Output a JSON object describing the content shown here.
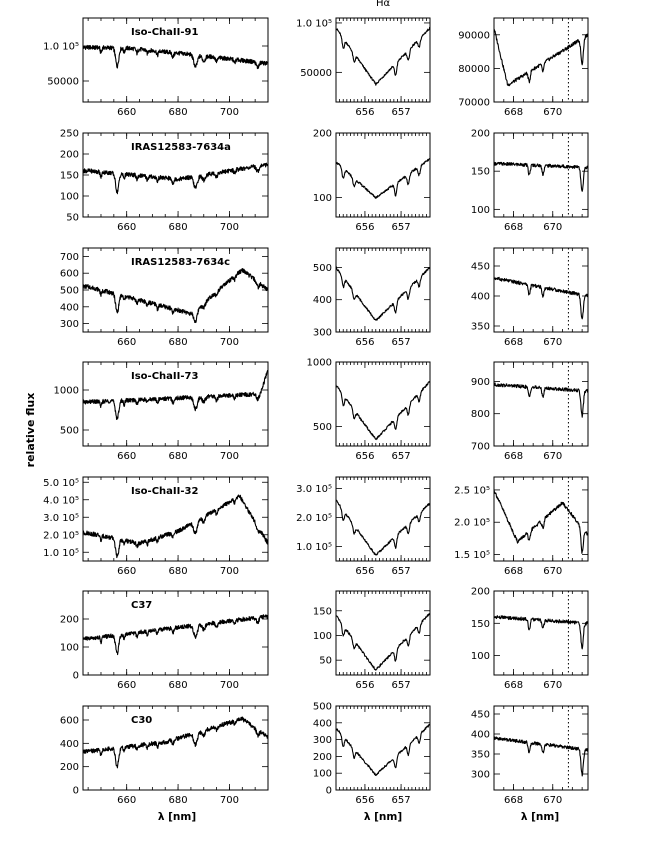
{
  "figure": {
    "top_title": "Hα",
    "ylabel": "relative flux",
    "xlabel_left": "λ [nm]",
    "xlabel_mid": "λ [nm]",
    "xlabel_right": "λ [nm]"
  },
  "chart_data": [
    {
      "type": "line",
      "star": "Iso-ChaII-91",
      "column": "full",
      "xlim": [
        643,
        715
      ],
      "xticks": [
        660,
        680,
        700
      ],
      "ylim": [
        20000,
        140000
      ],
      "yticks": [
        {
          "v": 50000,
          "t": "50000"
        },
        {
          "v": 100000,
          "t": "1.0  10⁵"
        }
      ],
      "series": [
        {
          "x": [
            645,
            660,
            685,
            715
          ],
          "y": [
            98000,
            97000,
            88000,
            75000
          ]
        }
      ]
    },
    {
      "type": "line",
      "star": "Iso-ChaII-91",
      "column": "Hα",
      "xlim": [
        655.2,
        657.8
      ],
      "xticks": [
        656,
        657
      ],
      "ylim": [
        20000,
        105000
      ],
      "yticks": [
        {
          "v": 50000,
          "t": "50000"
        },
        {
          "v": 100000,
          "t": "1.0  10⁵"
        }
      ],
      "series": [
        {
          "x": [
            655.2,
            656.3,
            657.8
          ],
          "y": [
            95000,
            38000,
            95000
          ]
        }
      ]
    },
    {
      "type": "line",
      "star": "Iso-ChaII-91",
      "column": "Li",
      "xlim": [
        667,
        671.8
      ],
      "xticks": [
        668,
        670
      ],
      "ylim": [
        70000,
        95000
      ],
      "yticks": [
        {
          "v": 70000,
          "t": "70000"
        },
        {
          "v": 80000,
          "t": "80000"
        },
        {
          "v": 90000,
          "t": "90000"
        }
      ],
      "series": [
        {
          "x": [
            667,
            667.7,
            671.8
          ],
          "y": [
            92000,
            75000,
            90000
          ]
        }
      ],
      "marker_x": 670.8
    },
    {
      "type": "line",
      "star": "IRAS12583-7634a",
      "column": "full",
      "xlim": [
        643,
        715
      ],
      "xticks": [
        660,
        680,
        700
      ],
      "ylim": [
        50,
        250
      ],
      "yticks": [
        {
          "v": 50,
          "t": "50"
        },
        {
          "v": 100,
          "t": "100"
        },
        {
          "v": 150,
          "t": "150"
        },
        {
          "v": 200,
          "t": "200"
        },
        {
          "v": 250,
          "t": "250"
        }
      ],
      "series": [
        {
          "x": [
            645,
            680,
            715
          ],
          "y": [
            160,
            140,
            175
          ]
        }
      ]
    },
    {
      "type": "line",
      "star": "IRAS12583-7634a",
      "column": "Hα",
      "xlim": [
        655.2,
        657.8
      ],
      "xticks": [
        656,
        657
      ],
      "ylim": [
        70,
        200
      ],
      "yticks": [
        {
          "v": 100,
          "t": "100"
        },
        {
          "v": 200,
          "t": "200"
        }
      ],
      "series": [
        {
          "x": [
            655.2,
            656.3,
            657.8
          ],
          "y": [
            155,
            100,
            160
          ]
        }
      ]
    },
    {
      "type": "line",
      "star": "IRAS12583-7634a",
      "column": "Li",
      "xlim": [
        667,
        671.8
      ],
      "xticks": [
        668,
        670
      ],
      "ylim": [
        90,
        200
      ],
      "yticks": [
        {
          "v": 100,
          "t": "100"
        },
        {
          "v": 150,
          "t": "150"
        },
        {
          "v": 200,
          "t": "200"
        }
      ],
      "series": [
        {
          "x": [
            667,
            671.8
          ],
          "y": [
            160,
            155
          ]
        }
      ],
      "marker_x": 670.8
    },
    {
      "type": "line",
      "star": "IRAS12583-7634c",
      "column": "full",
      "xlim": [
        643,
        715
      ],
      "xticks": [
        660,
        680,
        700
      ],
      "ylim": [
        250,
        750
      ],
      "yticks": [
        {
          "v": 300,
          "t": "300"
        },
        {
          "v": 400,
          "t": "400"
        },
        {
          "v": 500,
          "t": "500"
        },
        {
          "v": 600,
          "t": "600"
        },
        {
          "v": 700,
          "t": "700"
        }
      ],
      "series": [
        {
          "x": [
            645,
            670,
            685,
            705,
            715
          ],
          "y": [
            520,
            420,
            360,
            620,
            500
          ]
        }
      ]
    },
    {
      "type": "line",
      "star": "IRAS12583-7634c",
      "column": "Hα",
      "xlim": [
        655.2,
        657.8
      ],
      "xticks": [
        656,
        657
      ],
      "ylim": [
        300,
        560
      ],
      "yticks": [
        {
          "v": 300,
          "t": "300"
        },
        {
          "v": 400,
          "t": "400"
        },
        {
          "v": 500,
          "t": "500"
        }
      ],
      "series": [
        {
          "x": [
            655.2,
            656.3,
            657.8
          ],
          "y": [
            500,
            335,
            500
          ]
        }
      ]
    },
    {
      "type": "line",
      "star": "IRAS12583-7634c",
      "column": "Li",
      "xlim": [
        667,
        671.8
      ],
      "xticks": [
        668,
        670
      ],
      "ylim": [
        340,
        480
      ],
      "yticks": [
        {
          "v": 350,
          "t": "350"
        },
        {
          "v": 400,
          "t": "400"
        },
        {
          "v": 450,
          "t": "450"
        }
      ],
      "series": [
        {
          "x": [
            667,
            671.8
          ],
          "y": [
            430,
            400
          ]
        }
      ],
      "marker_x": 670.8
    },
    {
      "type": "line",
      "star": "Iso-ChaII-73",
      "column": "full",
      "xlim": [
        643,
        715
      ],
      "xticks": [
        660,
        680,
        700
      ],
      "ylim": [
        300,
        1350
      ],
      "yticks": [
        {
          "v": 500,
          "t": "500"
        },
        {
          "v": 1000,
          "t": "1000"
        }
      ],
      "series": [
        {
          "x": [
            645,
            680,
            712,
            715
          ],
          "y": [
            850,
            900,
            950,
            1250
          ]
        }
      ]
    },
    {
      "type": "line",
      "star": "Iso-ChaII-73",
      "column": "Hα",
      "xlim": [
        655.2,
        657.8
      ],
      "xticks": [
        656,
        657
      ],
      "ylim": [
        350,
        1000
      ],
      "yticks": [
        {
          "v": 500,
          "t": "500"
        },
        {
          "v": 1000,
          "t": "1000"
        }
      ],
      "series": [
        {
          "x": [
            655.2,
            656.3,
            657.8
          ],
          "y": [
            820,
            400,
            850
          ]
        }
      ]
    },
    {
      "type": "line",
      "star": "Iso-ChaII-73",
      "column": "Li",
      "xlim": [
        667,
        671.8
      ],
      "xticks": [
        668,
        670
      ],
      "ylim": [
        700,
        960
      ],
      "yticks": [
        {
          "v": 700,
          "t": "700"
        },
        {
          "v": 800,
          "t": "800"
        },
        {
          "v": 900,
          "t": "900"
        }
      ],
      "series": [
        {
          "x": [
            667,
            671.8
          ],
          "y": [
            890,
            870
          ]
        }
      ],
      "marker_x": 670.8
    },
    {
      "type": "line",
      "star": "Iso-ChaII-32",
      "column": "full",
      "xlim": [
        643,
        715
      ],
      "xticks": [
        660,
        680,
        700
      ],
      "ylim": [
        50000,
        530000
      ],
      "yticks": [
        {
          "v": 100000,
          "t": "1.0  10⁵"
        },
        {
          "v": 200000,
          "t": "2.0  10⁵"
        },
        {
          "v": 300000,
          "t": "3.0  10⁵"
        },
        {
          "v": 400000,
          "t": "4.0  10⁵"
        },
        {
          "v": 500000,
          "t": "5.0  10⁵"
        }
      ],
      "series": [
        {
          "x": [
            645,
            665,
            680,
            704,
            715
          ],
          "y": [
            210000,
            150000,
            220000,
            420000,
            150000
          ]
        }
      ]
    },
    {
      "type": "line",
      "star": "Iso-ChaII-32",
      "column": "Hα",
      "xlim": [
        655.2,
        657.8
      ],
      "xticks": [
        656,
        657
      ],
      "ylim": [
        50000,
        340000
      ],
      "yticks": [
        {
          "v": 100000,
          "t": "1.0  10⁵"
        },
        {
          "v": 200000,
          "t": "2.0  10⁵"
        },
        {
          "v": 300000,
          "t": "3.0  10⁵"
        }
      ],
      "series": [
        {
          "x": [
            655.2,
            656.3,
            657.8
          ],
          "y": [
            260000,
            70000,
            250000
          ]
        }
      ]
    },
    {
      "type": "line",
      "star": "Iso-ChaII-32",
      "column": "Li",
      "xlim": [
        667,
        671.8
      ],
      "xticks": [
        668,
        670
      ],
      "ylim": [
        140000,
        270000
      ],
      "yticks": [
        {
          "v": 150000,
          "t": "1.5  10⁵"
        },
        {
          "v": 200000,
          "t": "2.0  10⁵"
        },
        {
          "v": 250000,
          "t": "2.5  10⁵"
        }
      ],
      "series": [
        {
          "x": [
            667,
            668.2,
            670.5,
            671.8
          ],
          "y": [
            250000,
            170000,
            230000,
            180000
          ]
        }
      ],
      "marker_x": 670.8
    },
    {
      "type": "line",
      "star": "C37",
      "column": "full",
      "xlim": [
        643,
        715
      ],
      "xticks": [
        660,
        680,
        700
      ],
      "ylim": [
        0,
        300
      ],
      "yticks": [
        {
          "v": 0,
          "t": "0"
        },
        {
          "v": 100,
          "t": "100"
        },
        {
          "v": 200,
          "t": "200"
        }
      ],
      "series": [
        {
          "x": [
            645,
            680,
            715
          ],
          "y": [
            130,
            170,
            210
          ]
        }
      ]
    },
    {
      "type": "line",
      "star": "C37",
      "column": "Hα",
      "xlim": [
        655.2,
        657.8
      ],
      "xticks": [
        656,
        657
      ],
      "ylim": [
        20,
        190
      ],
      "yticks": [
        {
          "v": 50,
          "t": "50"
        },
        {
          "v": 100,
          "t": "100"
        },
        {
          "v": 150,
          "t": "150"
        }
      ],
      "series": [
        {
          "x": [
            655.2,
            656.3,
            657.8
          ],
          "y": [
            140,
            30,
            145
          ]
        }
      ]
    },
    {
      "type": "line",
      "star": "C37",
      "column": "Li",
      "xlim": [
        667,
        671.8
      ],
      "xticks": [
        668,
        670
      ],
      "ylim": [
        70,
        200
      ],
      "yticks": [
        {
          "v": 100,
          "t": "100"
        },
        {
          "v": 150,
          "t": "150"
        },
        {
          "v": 200,
          "t": "200"
        }
      ],
      "series": [
        {
          "x": [
            667,
            671.8
          ],
          "y": [
            160,
            150
          ]
        }
      ],
      "marker_x": 670.8
    },
    {
      "type": "line",
      "star": "C30",
      "column": "full",
      "xlim": [
        643,
        715
      ],
      "xticks": [
        660,
        680,
        700
      ],
      "ylim": [
        0,
        720
      ],
      "yticks": [
        {
          "v": 0,
          "t": "0"
        },
        {
          "v": 200,
          "t": "200"
        },
        {
          "v": 400,
          "t": "400"
        },
        {
          "v": 600,
          "t": "600"
        }
      ],
      "series": [
        {
          "x": [
            645,
            675,
            705,
            715
          ],
          "y": [
            330,
            410,
            610,
            450
          ]
        }
      ]
    },
    {
      "type": "line",
      "star": "C30",
      "column": "Hα",
      "xlim": [
        655.2,
        657.8
      ],
      "xticks": [
        656,
        657
      ],
      "ylim": [
        0,
        500
      ],
      "yticks": [
        {
          "v": 0,
          "t": "0"
        },
        {
          "v": 100,
          "t": "100"
        },
        {
          "v": 200,
          "t": "200"
        },
        {
          "v": 300,
          "t": "300"
        },
        {
          "v": 400,
          "t": "400"
        },
        {
          "v": 500,
          "t": "500"
        }
      ],
      "series": [
        {
          "x": [
            655.2,
            656.3,
            657.8
          ],
          "y": [
            370,
            90,
            390
          ]
        }
      ]
    },
    {
      "type": "line",
      "star": "C30",
      "column": "Li",
      "xlim": [
        667,
        671.8
      ],
      "xticks": [
        668,
        670
      ],
      "ylim": [
        260,
        470
      ],
      "yticks": [
        {
          "v": 300,
          "t": "300"
        },
        {
          "v": 350,
          "t": "350"
        },
        {
          "v": 400,
          "t": "400"
        },
        {
          "v": 450,
          "t": "450"
        }
      ],
      "series": [
        {
          "x": [
            667,
            671.8
          ],
          "y": [
            390,
            360
          ]
        }
      ],
      "marker_x": 670.8
    }
  ]
}
